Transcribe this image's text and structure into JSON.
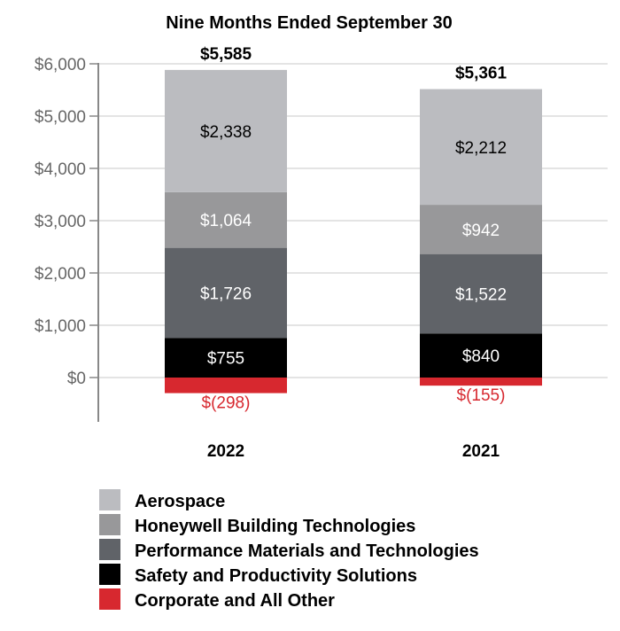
{
  "chart_data": {
    "type": "bar",
    "stacked": true,
    "title": "Nine Months Ended September 30",
    "xlabel": "",
    "ylabel": "",
    "ylim": [
      -800,
      6000
    ],
    "yticks": [
      0,
      1000,
      2000,
      3000,
      4000,
      5000,
      6000
    ],
    "ytick_labels": [
      "$0",
      "$1,000",
      "$2,000",
      "$3,000",
      "$4,000",
      "$5,000",
      "$6,000"
    ],
    "grid": true,
    "legend_position": "bottom-left",
    "categories": [
      "2022",
      "2021"
    ],
    "totals": [
      5585,
      5361
    ],
    "total_labels": [
      "$5,585",
      "$5,361"
    ],
    "series": [
      {
        "name": "Safety and Productivity Solutions",
        "color": "#000000",
        "label_color": "#ffffff",
        "values": [
          755,
          840
        ],
        "labels": [
          "$755",
          "$840"
        ]
      },
      {
        "name": "Performance Materials and Technologies",
        "color": "#606368",
        "label_color": "#ffffff",
        "values": [
          1726,
          1522
        ],
        "labels": [
          "$1,726",
          "$1,522"
        ]
      },
      {
        "name": "Honeywell Building Technologies",
        "color": "#98989a",
        "label_color": "#ffffff",
        "values": [
          1064,
          942
        ],
        "labels": [
          "$1,064",
          "$942"
        ]
      },
      {
        "name": "Aerospace",
        "color": "#bbbcc0",
        "label_color": "#000000",
        "values": [
          2338,
          2212
        ],
        "labels": [
          "$2,338",
          "$2,212"
        ]
      },
      {
        "name": "Corporate and All Other",
        "color": "#d7282f",
        "label_color": "#d7282f",
        "values": [
          -298,
          -155
        ],
        "labels": [
          "$(298)",
          "$(155)"
        ]
      }
    ],
    "legend_order": [
      "Aerospace",
      "Honeywell Building Technologies",
      "Performance Materials and Technologies",
      "Safety and Productivity Solutions",
      "Corporate and All Other"
    ]
  }
}
